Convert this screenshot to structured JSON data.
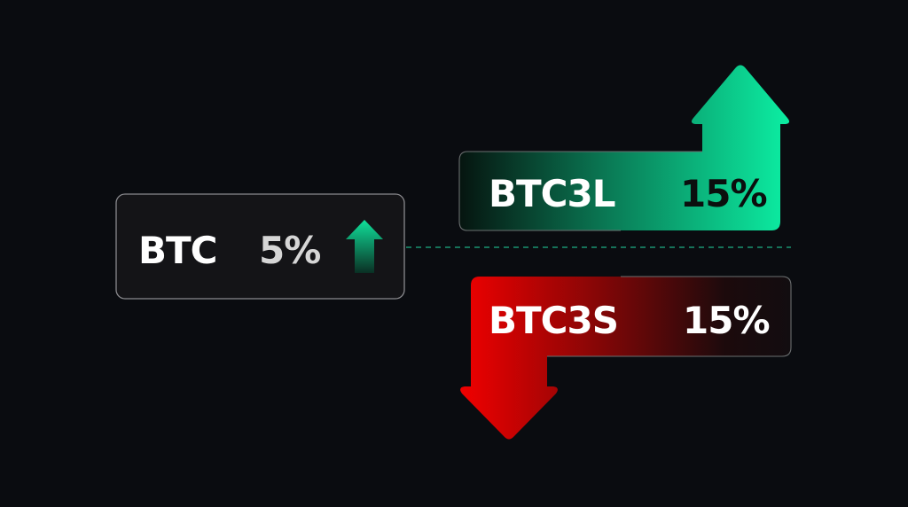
{
  "base": {
    "ticker": "BTC",
    "change": "5%",
    "direction": "up",
    "icon": "arrow-up-icon"
  },
  "long_token": {
    "ticker": "BTC3L",
    "change": "15%",
    "direction": "up",
    "icon": "arrow-up-icon"
  },
  "short_token": {
    "ticker": "BTC3S",
    "change": "15%",
    "direction": "down",
    "icon": "arrow-down-icon"
  },
  "colors": {
    "background": "#0a0c10",
    "green": "#0cefa0",
    "red": "#ee0000",
    "card": "#141417"
  }
}
